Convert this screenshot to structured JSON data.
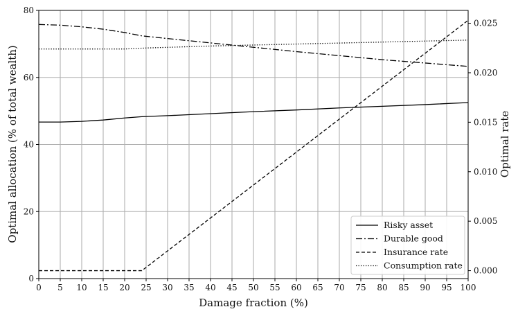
{
  "chart_data": {
    "type": "line",
    "xlabel": "Damage fraction (%)",
    "ylabel_left": "Optimal allocation (% of total wealth)",
    "ylabel_right": "Optimal rate",
    "xlim": [
      0,
      100
    ],
    "ylim_left": [
      0,
      80
    ],
    "ylim_right": [
      -0.0008,
      0.0263
    ],
    "x_ticks": [
      0,
      5,
      10,
      15,
      20,
      25,
      30,
      35,
      40,
      45,
      50,
      55,
      60,
      65,
      70,
      75,
      80,
      85,
      90,
      95,
      100
    ],
    "y_left_ticks": [
      0,
      20,
      40,
      60,
      80
    ],
    "y_right_ticks": [
      0.0,
      0.005,
      0.01,
      0.015,
      0.02,
      0.025
    ],
    "y_right_tick_labels": [
      "0.000",
      "0.005",
      "0.010",
      "0.015",
      "0.020",
      "0.025"
    ],
    "grid": true,
    "legend_position": "lower-right",
    "series": [
      {
        "name": "Risky asset",
        "axis": "left",
        "style": "solid",
        "x": [
          0,
          5,
          10,
          15,
          20,
          24,
          30,
          40,
          50,
          60,
          70,
          80,
          90,
          100
        ],
        "y": [
          46.7,
          46.7,
          46.9,
          47.3,
          47.9,
          48.3,
          48.6,
          49.2,
          49.8,
          50.3,
          50.9,
          51.4,
          51.9,
          52.5
        ]
      },
      {
        "name": "Durable good",
        "axis": "left",
        "style": "dashdot",
        "x": [
          0,
          5,
          10,
          15,
          20,
          24,
          30,
          40,
          50,
          60,
          70,
          80,
          90,
          100
        ],
        "y": [
          75.8,
          75.6,
          75.1,
          74.4,
          73.4,
          72.4,
          71.6,
          70.3,
          69.0,
          67.7,
          66.5,
          65.3,
          64.3,
          63.3
        ]
      },
      {
        "name": "Insurance rate",
        "axis": "right",
        "style": "dashed",
        "x": [
          0,
          24,
          100
        ],
        "y": [
          0.0,
          0.0,
          0.0253
        ]
      },
      {
        "name": "Consumption rate",
        "axis": "right",
        "style": "dotted",
        "x": [
          0,
          10,
          20,
          25,
          40,
          60,
          80,
          100
        ],
        "y": [
          0.0224,
          0.0224,
          0.0224,
          0.0225,
          0.0227,
          0.0229,
          0.0231,
          0.0233
        ]
      }
    ]
  }
}
